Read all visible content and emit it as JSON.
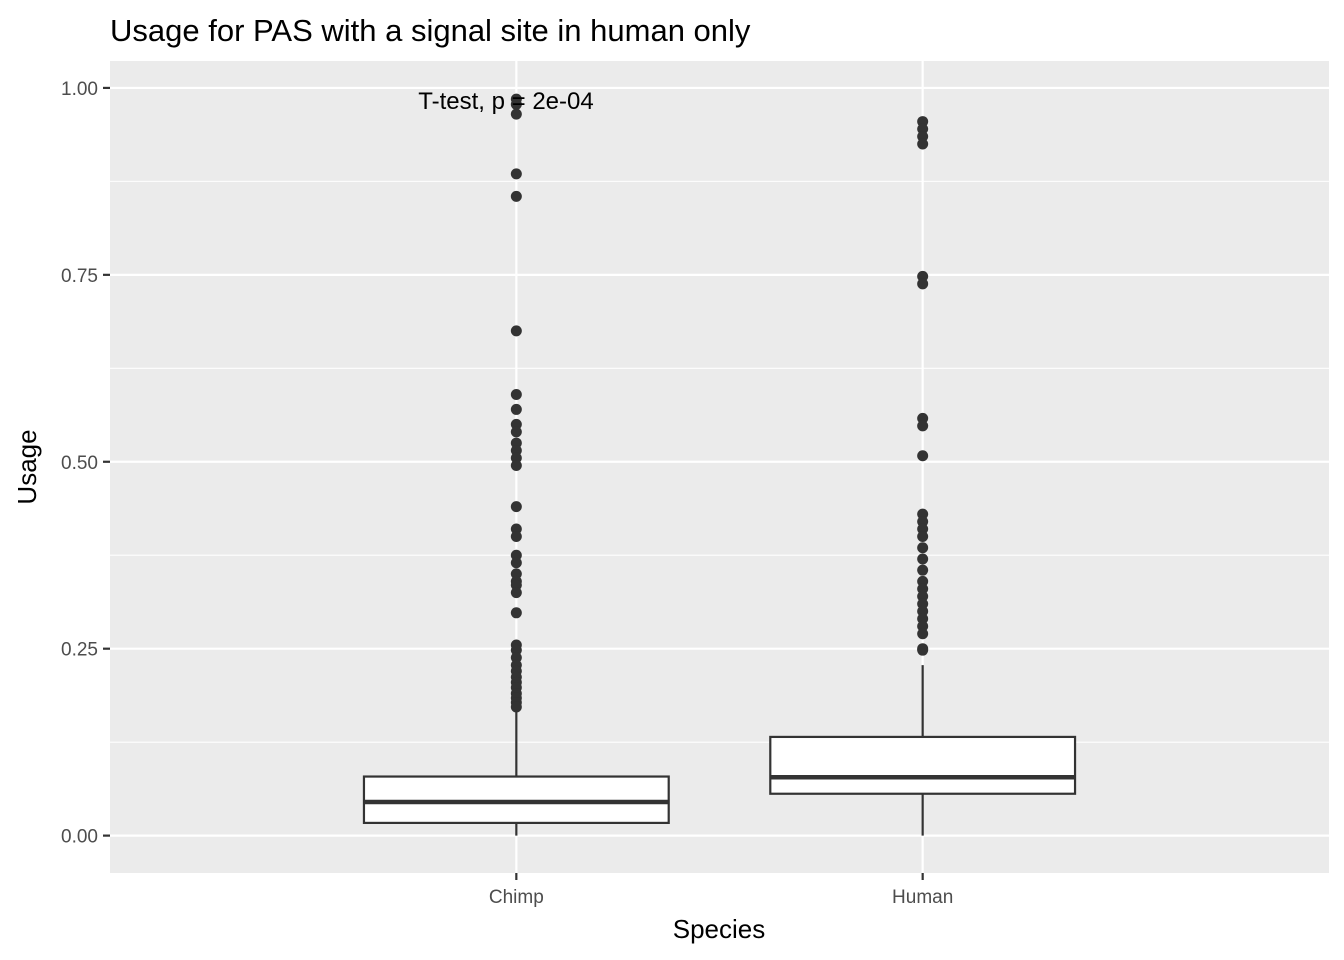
{
  "chart_data": {
    "type": "boxplot",
    "title": "Usage for PAS with a signal site in human only",
    "xlabel": "Species",
    "ylabel": "Usage",
    "ylim": [
      -0.05,
      1.036
    ],
    "yticks": [
      0.0,
      0.25,
      0.5,
      0.75,
      1.0
    ],
    "ytick_labels": [
      "0.00",
      "0.25",
      "0.50",
      "0.75",
      "1.00"
    ],
    "grid": true,
    "legend": "none",
    "annotation": "T-test, p = 2e-04",
    "categories": [
      "Chimp",
      "Human"
    ],
    "boxes": [
      {
        "name": "Chimp",
        "whisker_low": 0.0,
        "q1": 0.017,
        "median": 0.045,
        "q3": 0.079,
        "whisker_high": 0.17,
        "outliers": [
          0.985,
          0.978,
          0.965,
          0.885,
          0.855,
          0.675,
          0.59,
          0.57,
          0.55,
          0.54,
          0.525,
          0.515,
          0.505,
          0.495,
          0.44,
          0.41,
          0.4,
          0.375,
          0.365,
          0.35,
          0.34,
          0.335,
          0.325,
          0.298,
          0.255,
          0.248,
          0.238,
          0.228,
          0.22,
          0.212,
          0.205,
          0.198,
          0.19,
          0.184,
          0.178,
          0.172
        ]
      },
      {
        "name": "Human",
        "whisker_low": 0.0,
        "q1": 0.056,
        "median": 0.078,
        "q3": 0.132,
        "whisker_high": 0.228,
        "outliers": [
          0.955,
          0.945,
          0.935,
          0.925,
          0.748,
          0.738,
          0.558,
          0.548,
          0.508,
          0.43,
          0.42,
          0.41,
          0.4,
          0.385,
          0.37,
          0.355,
          0.34,
          0.33,
          0.32,
          0.31,
          0.3,
          0.29,
          0.28,
          0.27,
          0.25,
          0.248
        ]
      }
    ],
    "colors": {
      "panel": "#ebebeb",
      "grid": "#ffffff",
      "box_fill": "#ffffff",
      "box_line": "#333333",
      "points": "#333333",
      "tick_text": "#4d4d4d",
      "text": "#000000"
    }
  }
}
